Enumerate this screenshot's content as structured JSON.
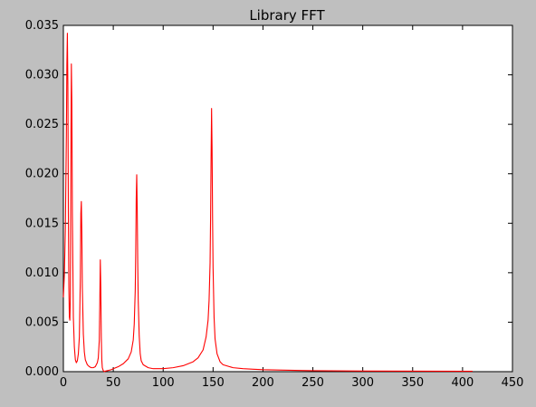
{
  "chart_data": {
    "type": "line",
    "title": "Library FFT",
    "xlabel": "",
    "ylabel": "",
    "xlim": [
      0,
      450
    ],
    "ylim": [
      0,
      0.035
    ],
    "xticks": [
      0,
      50,
      100,
      150,
      200,
      250,
      300,
      350,
      400,
      450
    ],
    "xtick_labels": [
      "0",
      "50",
      "100",
      "150",
      "200",
      "250",
      "300",
      "350",
      "400",
      "450"
    ],
    "yticks": [
      0,
      0.005,
      0.01,
      0.015,
      0.02,
      0.025,
      0.03,
      0.035
    ],
    "ytick_labels": [
      "0.000",
      "0.005",
      "0.010",
      "0.015",
      "0.020",
      "0.025",
      "0.030",
      "0.035"
    ],
    "grid": false,
    "legend": false,
    "series": [
      {
        "color": "#ff0000",
        "x": [
          0,
          1,
          2,
          3,
          3.5,
          4,
          4.5,
          5,
          5.5,
          6,
          6.5,
          7,
          7.5,
          8,
          8.5,
          9,
          10,
          11,
          12,
          13,
          14,
          15,
          16,
          17,
          17.5,
          18,
          18.5,
          19,
          20,
          21,
          22,
          24,
          26,
          28,
          30,
          32,
          34,
          35,
          36,
          36.5,
          37,
          37.5,
          38,
          38.5,
          39,
          40,
          41,
          42,
          44,
          46,
          48,
          50,
          55,
          60,
          65,
          68,
          70,
          71,
          72,
          72.5,
          73,
          73.5,
          74,
          74.5,
          75,
          76,
          77,
          78,
          80,
          85,
          90,
          100,
          110,
          120,
          130,
          135,
          140,
          143,
          145,
          146,
          147,
          147.5,
          148,
          148.5,
          149,
          149.5,
          150,
          151,
          152,
          154,
          157,
          160,
          170,
          180,
          190,
          200,
          220,
          250,
          300,
          350,
          400,
          410
        ],
        "y": [
          0.0075,
          0.0098,
          0.0145,
          0.024,
          0.031,
          0.0342,
          0.029,
          0.016,
          0.0085,
          0.0055,
          0.0052,
          0.0075,
          0.022,
          0.0311,
          0.027,
          0.016,
          0.0055,
          0.0025,
          0.0012,
          0.0009,
          0.0011,
          0.0018,
          0.0035,
          0.0095,
          0.016,
          0.0172,
          0.014,
          0.0085,
          0.0038,
          0.002,
          0.0012,
          0.0007,
          0.0005,
          0.0004,
          0.0004,
          0.0005,
          0.0009,
          0.0014,
          0.0032,
          0.007,
          0.0113,
          0.0085,
          0.0035,
          0.0012,
          0.0004,
          0.0001,
          0.0,
          5e-05,
          0.0001,
          0.00015,
          0.0002,
          0.0003,
          0.0005,
          0.0008,
          0.0013,
          0.002,
          0.0032,
          0.0048,
          0.0082,
          0.012,
          0.0175,
          0.0199,
          0.0165,
          0.011,
          0.0072,
          0.0036,
          0.0018,
          0.0011,
          0.0007,
          0.0004,
          0.0003,
          0.0003,
          0.0004,
          0.0006,
          0.001,
          0.0014,
          0.0022,
          0.0035,
          0.0052,
          0.0072,
          0.011,
          0.0155,
          0.0215,
          0.0266,
          0.0225,
          0.0155,
          0.0105,
          0.0055,
          0.0033,
          0.0018,
          0.001,
          0.0007,
          0.0004,
          0.0003,
          0.00025,
          0.0002,
          0.00015,
          0.0001,
          6e-05,
          5e-05,
          4e-05,
          4e-05
        ]
      }
    ]
  }
}
